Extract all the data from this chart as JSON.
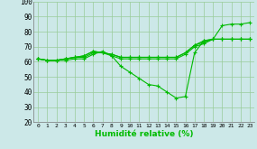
{
  "xlabel": "Humidité relative (%)",
  "background_color": "#cce8e8",
  "line_color": "#00bb00",
  "grid_color": "#99cc99",
  "x": [
    0,
    1,
    2,
    3,
    4,
    5,
    6,
    7,
    8,
    9,
    10,
    11,
    12,
    13,
    14,
    15,
    16,
    17,
    18,
    19,
    20,
    21,
    22,
    23
  ],
  "lines": [
    [
      62,
      61,
      61,
      61,
      62,
      62,
      65,
      67,
      64,
      57,
      53,
      49,
      45,
      44,
      40,
      36,
      37,
      66,
      74,
      75,
      84,
      85,
      85,
      86
    ],
    [
      62,
      61,
      61,
      62,
      63,
      63,
      66,
      66,
      64,
      62,
      62,
      62,
      62,
      62,
      62,
      62,
      65,
      70,
      72,
      75,
      75,
      75,
      75,
      75
    ],
    [
      62,
      61,
      61,
      62,
      63,
      64,
      67,
      66,
      65,
      63,
      63,
      63,
      63,
      63,
      63,
      63,
      66,
      71,
      73,
      75,
      75,
      75,
      75,
      75
    ],
    [
      62,
      61,
      61,
      62,
      63,
      64,
      67,
      66,
      65,
      63,
      63,
      63,
      63,
      63,
      63,
      63,
      66,
      71,
      74,
      75,
      75,
      75,
      75,
      75
    ]
  ],
  "ylim": [
    20,
    100
  ],
  "yticks": [
    20,
    30,
    40,
    50,
    60,
    70,
    80,
    90,
    100
  ],
  "xlim": [
    -0.5,
    23.5
  ],
  "marker": "+"
}
